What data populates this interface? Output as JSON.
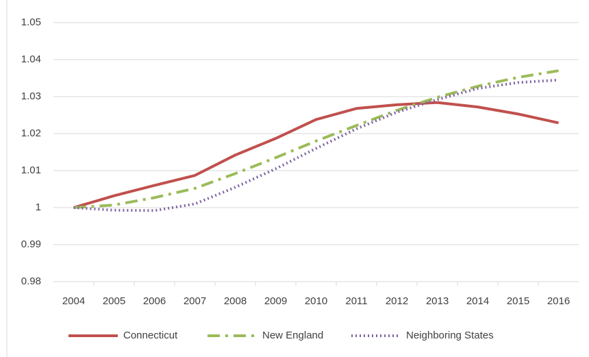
{
  "chart_data": {
    "type": "line",
    "categories": [
      "2004",
      "2005",
      "2006",
      "2007",
      "2008",
      "2009",
      "2010",
      "2011",
      "2012",
      "2013",
      "2014",
      "2015",
      "2016"
    ],
    "series": [
      {
        "name": "Connecticut",
        "color": "#c0504d",
        "dash": "solid",
        "values": [
          1.0,
          1.0032,
          1.006,
          1.0087,
          1.0142,
          1.0187,
          1.0238,
          1.0268,
          1.0278,
          1.0284,
          1.0272,
          1.0253,
          1.0229
        ]
      },
      {
        "name": "New England",
        "color": "#9bbb59",
        "dash": "dashdot",
        "values": [
          1.0,
          1.0007,
          1.0027,
          1.0052,
          1.0092,
          1.0135,
          1.018,
          1.0222,
          1.0263,
          1.0298,
          1.0328,
          1.0352,
          1.037
        ]
      },
      {
        "name": "Neighboring States",
        "color": "#8064a2",
        "dash": "dot",
        "values": [
          1.0,
          0.9993,
          0.9992,
          1.001,
          1.0055,
          1.0105,
          1.016,
          1.0213,
          1.0258,
          1.0292,
          1.0322,
          1.0338,
          1.0345
        ]
      }
    ],
    "ylim": [
      0.98,
      1.05
    ],
    "yticks": [
      0.98,
      0.99,
      1,
      1.01,
      1.02,
      1.03,
      1.04,
      1.05
    ],
    "grid": true,
    "legend": "bottom"
  }
}
